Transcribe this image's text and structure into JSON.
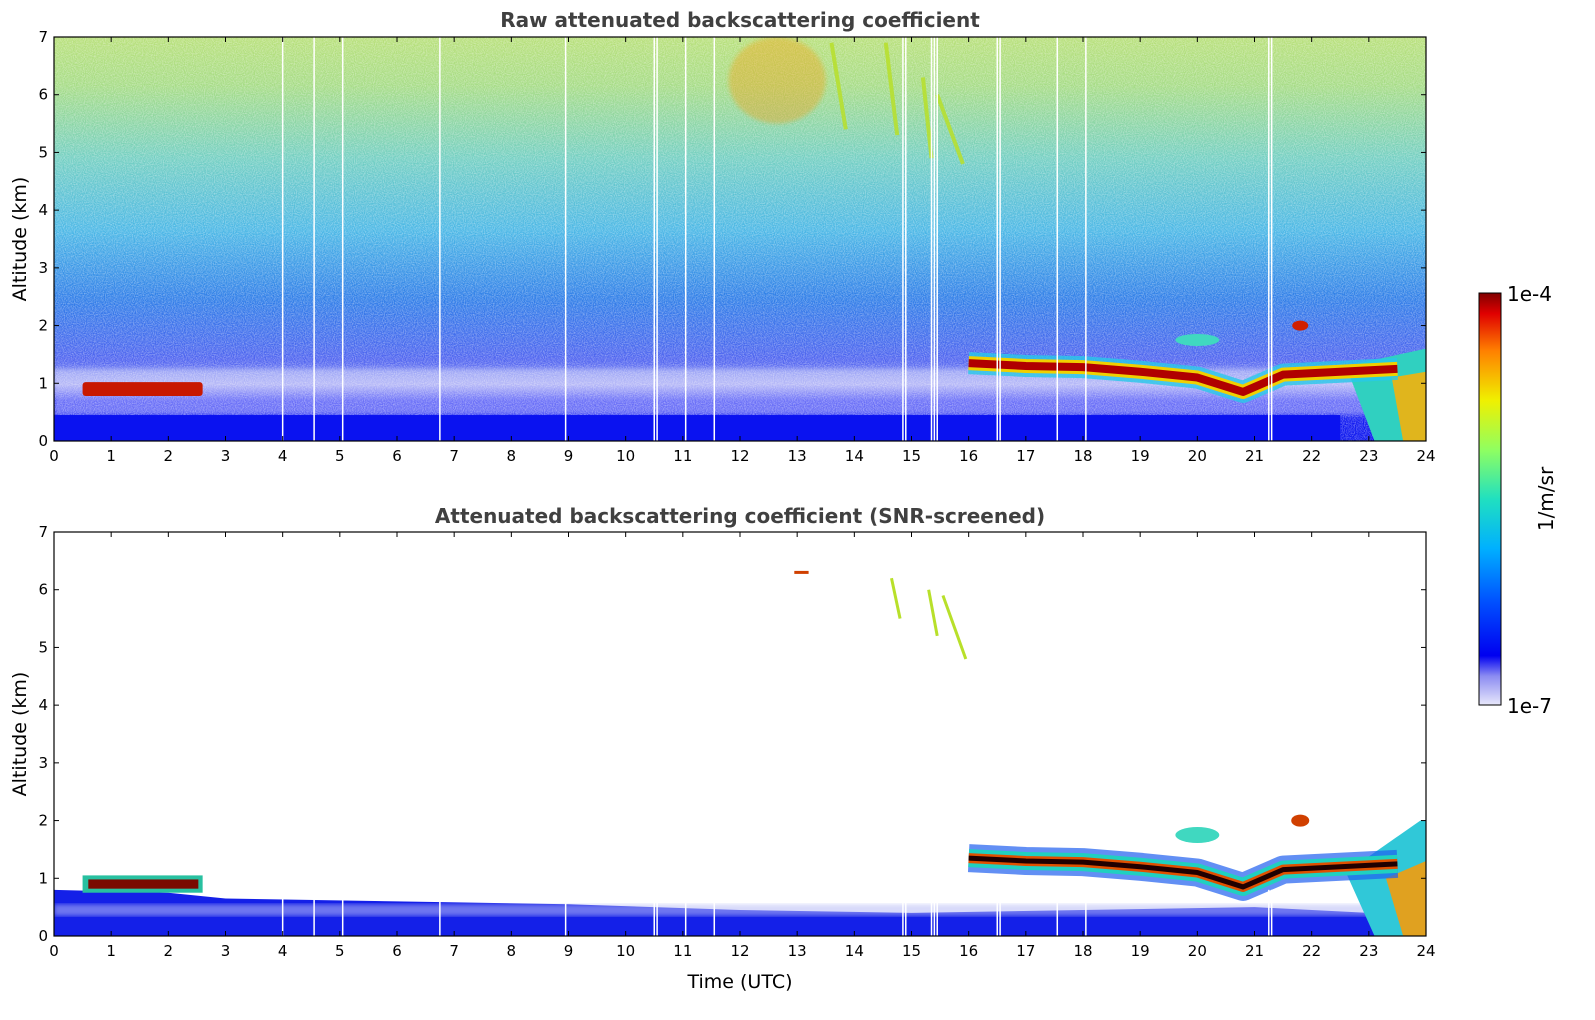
{
  "chart_data": [
    {
      "type": "heatmap",
      "title": "Raw attenuated backscattering coefficient",
      "xlabel": "",
      "ylabel": "Altitude (km)",
      "xlim": [
        0,
        24
      ],
      "ylim": [
        0,
        7
      ],
      "x_ticks": [
        "0",
        "1",
        "2",
        "3",
        "4",
        "5",
        "6",
        "7",
        "8",
        "9",
        "10",
        "11",
        "12",
        "13",
        "14",
        "15",
        "16",
        "17",
        "18",
        "19",
        "20",
        "21",
        "22",
        "23",
        "24"
      ],
      "y_ticks": [
        "0",
        "1",
        "2",
        "3",
        "4",
        "5",
        "6",
        "7"
      ],
      "missing_profiles_utc": [
        4.0,
        4.55,
        5.05,
        6.75,
        8.95,
        10.5,
        10.55,
        11.05,
        11.55,
        14.85,
        14.9,
        15.35,
        15.4,
        15.45,
        16.5,
        16.55,
        17.55,
        18.05,
        21.25,
        21.3
      ],
      "features": [
        {
          "name": "boundary layer (strong blue)",
          "t_start": 0,
          "t_end": 22.5,
          "alt_min": 0,
          "alt_max": 0.45
        },
        {
          "name": "morning cloud layer",
          "t_start": 0.5,
          "t_end": 2.6,
          "alt_km": 0.9,
          "intensity": "high"
        },
        {
          "name": "cloud layer",
          "t_start": 16,
          "t_end": 23.8,
          "alt_profile_km": [
            [
              16,
              1.35
            ],
            [
              17,
              1.3
            ],
            [
              18,
              1.28
            ],
            [
              19,
              1.2
            ],
            [
              20,
              1.1
            ],
            [
              20.8,
              0.85
            ],
            [
              21.5,
              1.15
            ],
            [
              22.5,
              1.2
            ],
            [
              23.5,
              1.25
            ]
          ],
          "intensity": "high"
        },
        {
          "name": "aerosol plume",
          "t_start": 22.6,
          "t_end": 24,
          "alt_min": 0,
          "alt_max": 1.3
        },
        {
          "name": "upper layer",
          "t_start": 11.8,
          "t_end": 13.5,
          "alt_min": 5.5,
          "alt_max": 7,
          "intensity": "medium-high"
        },
        {
          "name": "falling streaks",
          "t_start": 14.5,
          "t_end": 16,
          "alt_min": 4.8,
          "alt_max": 6.8
        }
      ]
    },
    {
      "type": "heatmap",
      "title": "Attenuated backscattering coefficient (SNR-screened)",
      "xlabel": "Time (UTC)",
      "ylabel": "Altitude (km)",
      "xlim": [
        0,
        24
      ],
      "ylim": [
        0,
        7
      ],
      "x_ticks": [
        "0",
        "1",
        "2",
        "3",
        "4",
        "5",
        "6",
        "7",
        "8",
        "9",
        "10",
        "11",
        "12",
        "13",
        "14",
        "15",
        "16",
        "17",
        "18",
        "19",
        "20",
        "21",
        "22",
        "23",
        "24"
      ],
      "y_ticks": [
        "0",
        "1",
        "2",
        "3",
        "4",
        "5",
        "6",
        "7"
      ],
      "features": [
        {
          "name": "boundary layer",
          "profile_top_km": [
            [
              0,
              0.8
            ],
            [
              2,
              0.75
            ],
            [
              3,
              0.65
            ],
            [
              6,
              0.6
            ],
            [
              9,
              0.55
            ],
            [
              12,
              0.45
            ],
            [
              15,
              0.4
            ],
            [
              18,
              0.45
            ],
            [
              21,
              0.5
            ],
            [
              23,
              0.4
            ]
          ]
        },
        {
          "name": "morning cloud layer",
          "t_start": 0.5,
          "t_end": 2.6,
          "alt_km": 0.9
        },
        {
          "name": "cloud layer",
          "t_start": 16,
          "t_end": 23.8,
          "alt_km": 1.2
        },
        {
          "name": "aerosol plume",
          "t_start": 22.6,
          "t_end": 24,
          "alt_min": 0,
          "alt_max": 2.0
        },
        {
          "name": "falling streaks",
          "t_start": 14.6,
          "t_end": 16,
          "alt_min": 4.8,
          "alt_max": 6.2
        },
        {
          "name": "isolated echo",
          "t_start": 12.95,
          "t_end": 13.2,
          "alt_km": 6.3
        }
      ]
    }
  ],
  "colorbar": {
    "label": "1/m/sr",
    "min_label": "1e-7",
    "max_label": "1e-4",
    "scale": "log",
    "colormap": "jet"
  }
}
